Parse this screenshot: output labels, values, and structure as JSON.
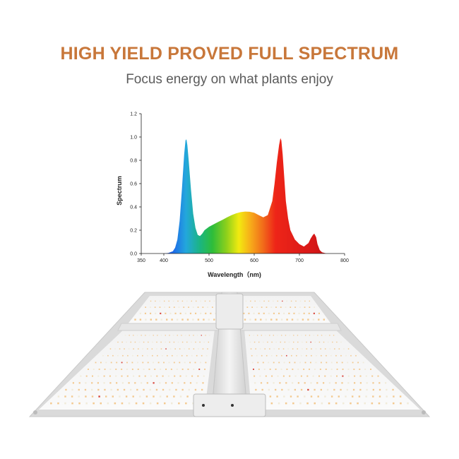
{
  "header": {
    "title": "HIGH YIELD PROVED FULL SPECTRUM",
    "subtitle": "Focus energy on what plants enjoy"
  },
  "colors": {
    "title": "#c8773a",
    "subtitle": "#5b5b5b",
    "axis": "#222222",
    "panel_frame": "#dcdcdc",
    "led_warm": "#f3c98f",
    "led_white": "#f1ebd9",
    "led_red": "#d8443a"
  },
  "chart_data": {
    "type": "area",
    "title": "",
    "xlabel": "Wavelength（nm)",
    "ylabel": "Spectrum",
    "xlim": [
      350,
      800
    ],
    "ylim": [
      0,
      1.2
    ],
    "xticks": [
      350,
      400,
      500,
      600,
      700,
      800
    ],
    "yticks": [
      "0.0",
      "0.2",
      "0.4",
      "0.6",
      "0.8",
      "1.0",
      "1.2"
    ],
    "fill": "wavelength-rainbow gradient",
    "grid": false,
    "legend": "none",
    "series": [
      {
        "x": [
          400,
          410,
          420,
          425,
          430,
          435,
          440,
          445,
          448,
          450,
          452,
          455,
          460,
          465,
          470,
          475,
          480,
          485,
          490,
          500,
          510,
          520,
          530,
          540,
          550,
          560,
          570,
          580,
          590,
          600,
          610,
          620,
          630,
          640,
          645,
          650,
          655,
          658,
          660,
          663,
          667,
          670,
          675,
          680,
          690,
          700,
          710,
          720,
          725,
          730,
          733,
          737,
          740,
          745,
          750,
          760,
          780
        ],
        "values": [
          0.0,
          0.005,
          0.02,
          0.05,
          0.12,
          0.28,
          0.55,
          0.85,
          0.97,
          0.98,
          0.93,
          0.8,
          0.55,
          0.34,
          0.22,
          0.16,
          0.15,
          0.17,
          0.2,
          0.23,
          0.25,
          0.27,
          0.29,
          0.31,
          0.33,
          0.345,
          0.355,
          0.36,
          0.358,
          0.35,
          0.33,
          0.31,
          0.33,
          0.45,
          0.6,
          0.78,
          0.93,
          0.99,
          0.97,
          0.85,
          0.62,
          0.45,
          0.3,
          0.2,
          0.12,
          0.08,
          0.06,
          0.09,
          0.13,
          0.16,
          0.17,
          0.14,
          0.08,
          0.03,
          0.01,
          0.0,
          0.0
        ]
      }
    ]
  },
  "product": {
    "icon": "led-grow-light-panel"
  }
}
